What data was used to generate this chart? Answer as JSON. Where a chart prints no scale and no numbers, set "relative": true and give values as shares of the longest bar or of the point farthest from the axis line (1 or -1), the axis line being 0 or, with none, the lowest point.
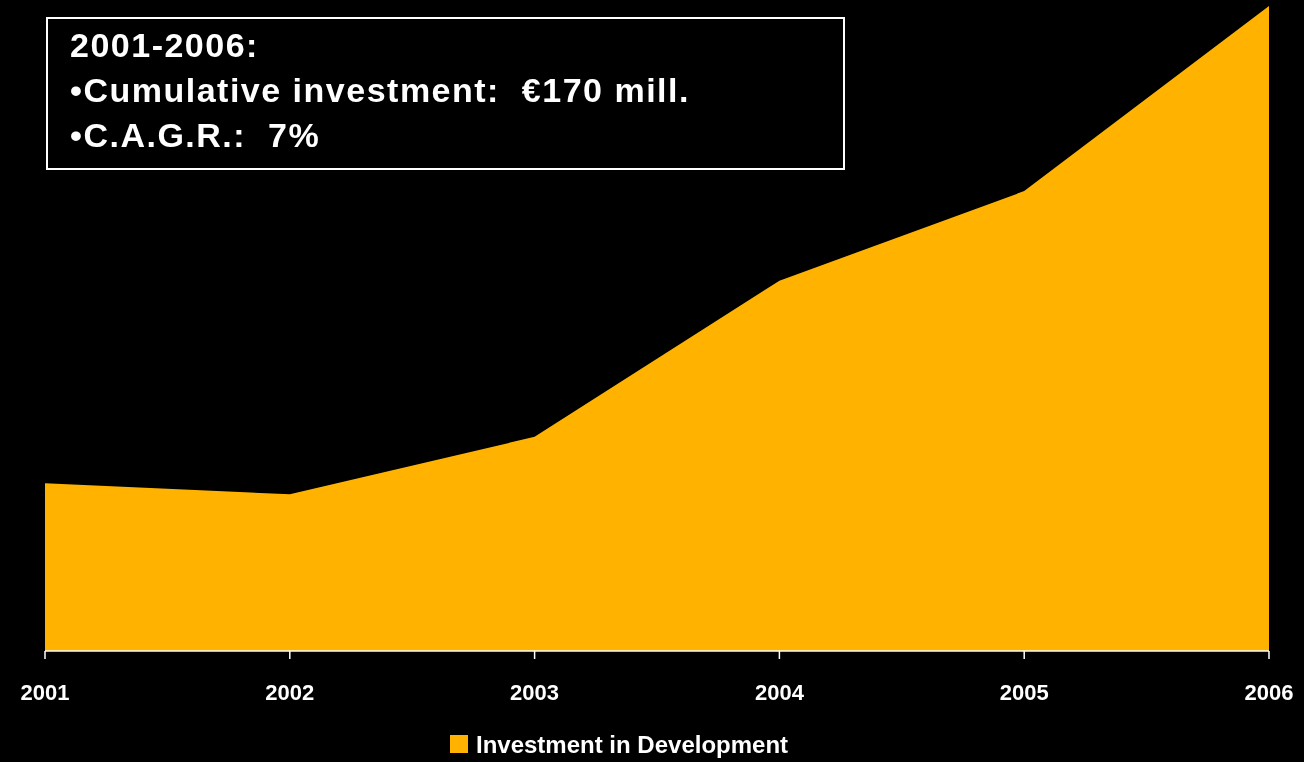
{
  "chart_data": {
    "type": "area",
    "relative": true,
    "categories": [
      "2001",
      "2002",
      "2003",
      "2004",
      "2005",
      "2006"
    ],
    "series": [
      {
        "name": "Investment in Development",
        "color": "#ffb300",
        "values": [
          0.26,
          0.243,
          0.332,
          0.574,
          0.713,
          1
        ]
      }
    ],
    "annotations": [
      "2001-2006:",
      "•Cumulative investment:  €170 mill.",
      "•C.A.G.R.:  7%"
    ],
    "legend": "bottom"
  }
}
